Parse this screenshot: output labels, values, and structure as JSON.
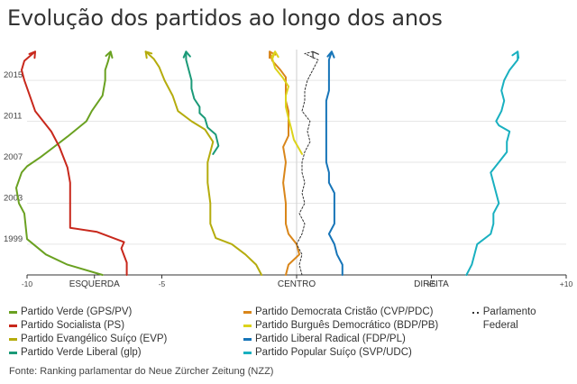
{
  "title": "Evolução dos partidos ao longo dos anos",
  "source": "Fonte: Ranking parlamentar do Neue Zürcher Zeitung (NZZ)",
  "chart_data": {
    "type": "line",
    "orientation": "vertical-time",
    "title": "Evolução dos partidos ao longo dos anos",
    "x_axis": {
      "min": -10,
      "max": 10,
      "ticks": [
        {
          "value": -10,
          "label": "-10"
        },
        {
          "value": -5,
          "label": "-5"
        },
        {
          "value": 5,
          "label": "+5"
        },
        {
          "value": 10,
          "label": "+10"
        }
      ],
      "zone_labels": [
        {
          "value": -7.5,
          "label": "ESQUERDA"
        },
        {
          "value": 0,
          "label": "CENTRO"
        },
        {
          "value": 5,
          "label": "DIREITA"
        }
      ]
    },
    "y_axis": {
      "min": 1996,
      "max": 2018,
      "ticks": [
        1999,
        2003,
        2007,
        2011,
        2015
      ]
    },
    "series": [
      {
        "name": "Partido Verde (GPS/PV)",
        "color": "#6aa121",
        "points": [
          [
            -7.2,
            1996
          ],
          [
            -8.5,
            1997
          ],
          [
            -9.3,
            1998
          ],
          [
            -10,
            1999.5
          ],
          [
            -10.1,
            2002
          ],
          [
            -10.3,
            2003
          ],
          [
            -10.4,
            2004.5
          ],
          [
            -10.2,
            2006
          ],
          [
            -10.0,
            2006.6
          ],
          [
            -9.5,
            2007.5
          ],
          [
            -9.0,
            2008.5
          ],
          [
            -8.5,
            2009.5
          ],
          [
            -7.8,
            2011
          ],
          [
            -7.6,
            2012
          ],
          [
            -7.2,
            2013.5
          ],
          [
            -7.1,
            2015
          ],
          [
            -7.1,
            2016
          ],
          [
            -7.0,
            2016.8
          ],
          [
            -6.9,
            2017.8
          ]
        ],
        "dashed": false
      },
      {
        "name": "Partido Socialista (PS)",
        "color": "#c8281c",
        "points": [
          [
            -6.3,
            1996
          ],
          [
            -6.3,
            1997.2
          ],
          [
            -6.5,
            1998.6
          ],
          [
            -6.4,
            1999.2
          ],
          [
            -7.4,
            2000.2
          ],
          [
            -8.4,
            2000.6
          ],
          [
            -8.4,
            2003
          ],
          [
            -8.4,
            2005
          ],
          [
            -8.5,
            2006.5
          ],
          [
            -8.8,
            2008.5
          ],
          [
            -9.1,
            2010
          ],
          [
            -9.4,
            2011
          ],
          [
            -9.7,
            2012
          ],
          [
            -9.9,
            2013.5
          ],
          [
            -10.1,
            2015
          ],
          [
            -10.2,
            2016
          ],
          [
            -10.1,
            2016.9
          ],
          [
            -9.7,
            2017.8
          ]
        ],
        "dashed": false
      },
      {
        "name": "Partido Evangélico Suíço (EVP)",
        "color": "#b5ac0d",
        "points": [
          [
            -1.3,
            1996
          ],
          [
            -1.5,
            1997
          ],
          [
            -1.9,
            1998
          ],
          [
            -2.4,
            1999
          ],
          [
            -3.0,
            1999.6
          ],
          [
            -3.2,
            2001
          ],
          [
            -3.2,
            2003
          ],
          [
            -3.3,
            2005
          ],
          [
            -3.3,
            2007
          ],
          [
            -3.2,
            2008
          ],
          [
            -3.1,
            2009
          ],
          [
            -3.4,
            2010.2
          ],
          [
            -3.9,
            2011
          ],
          [
            -4.4,
            2012
          ],
          [
            -4.6,
            2013.5
          ],
          [
            -4.9,
            2015
          ],
          [
            -5.1,
            2016.3
          ],
          [
            -5.3,
            2017.1
          ],
          [
            -5.6,
            2017.8
          ]
        ],
        "dashed": false
      },
      {
        "name": "Partido Verde Liberal (glp)",
        "color": "#1b9a78",
        "points": [
          [
            -3.1,
            2007.8
          ],
          [
            -2.9,
            2008.6
          ],
          [
            -3.0,
            2009.7
          ],
          [
            -3.3,
            2010.4
          ],
          [
            -3.4,
            2011.3
          ],
          [
            -3.6,
            2011.8
          ],
          [
            -3.6,
            2012.4
          ],
          [
            -3.8,
            2013.2
          ],
          [
            -3.9,
            2014.2
          ],
          [
            -3.9,
            2015
          ],
          [
            -4.0,
            2016
          ],
          [
            -4.1,
            2017
          ],
          [
            -4.1,
            2017.8
          ]
        ],
        "dashed": false
      },
      {
        "name": "Partido Democrata Cristão (CVP/PDC)",
        "color": "#d9861a",
        "points": [
          [
            -0.4,
            1996
          ],
          [
            -0.3,
            1997
          ],
          [
            0.1,
            1998
          ],
          [
            0.0,
            1999
          ],
          [
            -0.3,
            2000
          ],
          [
            -0.4,
            2001
          ],
          [
            -0.4,
            2003
          ],
          [
            -0.5,
            2005
          ],
          [
            -0.4,
            2007
          ],
          [
            -0.5,
            2008.5
          ],
          [
            -0.3,
            2009.6
          ],
          [
            -0.3,
            2011
          ],
          [
            -0.3,
            2012
          ],
          [
            -0.4,
            2013
          ],
          [
            -0.4,
            2014.5
          ],
          [
            -0.4,
            2015.3
          ],
          [
            -0.6,
            2016
          ],
          [
            -0.9,
            2016.9
          ],
          [
            -1.0,
            2017.8
          ]
        ],
        "dashed": false
      },
      {
        "name": "Partido Burguês Democrático (BDP/PB)",
        "color": "#dcd31b",
        "points": [
          [
            0.2,
            2007.8
          ],
          [
            -0.1,
            2009.2
          ],
          [
            -0.2,
            2010.3
          ],
          [
            -0.3,
            2011.3
          ],
          [
            -0.4,
            2012.4
          ],
          [
            -0.4,
            2013.5
          ],
          [
            -0.3,
            2014.4
          ],
          [
            -0.5,
            2015.2
          ],
          [
            -0.8,
            2016.2
          ],
          [
            -0.9,
            2017.1
          ],
          [
            -0.8,
            2017.8
          ]
        ],
        "dashed": false
      },
      {
        "name": "Parlamento Federal",
        "color": "#333333",
        "points": [
          [
            0.2,
            1996
          ],
          [
            0.1,
            1997
          ],
          [
            0.2,
            1998
          ],
          [
            0.0,
            1999
          ],
          [
            0.2,
            2000
          ],
          [
            0.3,
            2001
          ],
          [
            0.1,
            2002
          ],
          [
            0.3,
            2003
          ],
          [
            0.2,
            2004
          ],
          [
            0.3,
            2005
          ],
          [
            0.2,
            2006
          ],
          [
            0.2,
            2007
          ],
          [
            0.3,
            2008
          ],
          [
            0.5,
            2009
          ],
          [
            0.4,
            2010
          ],
          [
            0.5,
            2011
          ],
          [
            0.2,
            2012
          ],
          [
            0.3,
            2013
          ],
          [
            0.3,
            2014
          ],
          [
            0.4,
            2015
          ],
          [
            0.6,
            2016
          ],
          [
            0.8,
            2017
          ],
          [
            0.3,
            2017.6
          ],
          [
            0.6,
            2017.8
          ]
        ],
        "dashed": true
      },
      {
        "name": "Partido Liberal Radical (FDP/PL)",
        "color": "#1775b8",
        "points": [
          [
            1.7,
            1996
          ],
          [
            1.7,
            1997
          ],
          [
            1.5,
            1998
          ],
          [
            1.4,
            1999
          ],
          [
            1.2,
            2000
          ],
          [
            1.4,
            2001
          ],
          [
            1.4,
            2002
          ],
          [
            1.4,
            2003
          ],
          [
            1.4,
            2004
          ],
          [
            1.2,
            2005
          ],
          [
            1.2,
            2006
          ],
          [
            1.1,
            2007
          ],
          [
            1.1,
            2008
          ],
          [
            1.1,
            2009.6
          ],
          [
            1.1,
            2010.4
          ],
          [
            1.1,
            2011
          ],
          [
            1.1,
            2012
          ],
          [
            1.1,
            2013
          ],
          [
            1.2,
            2014
          ],
          [
            1.2,
            2015
          ],
          [
            1.2,
            2016
          ],
          [
            1.2,
            2017
          ],
          [
            1.3,
            2017.8
          ]
        ],
        "dashed": false
      },
      {
        "name": "Partido Popular Suíço (SVP/UDC)",
        "color": "#19b0c0",
        "points": [
          [
            6.3,
            1996
          ],
          [
            6.5,
            1997
          ],
          [
            6.6,
            1998
          ],
          [
            6.7,
            1999
          ],
          [
            7.2,
            2000
          ],
          [
            7.3,
            2001
          ],
          [
            7.3,
            2002
          ],
          [
            7.5,
            2003
          ],
          [
            7.4,
            2004
          ],
          [
            7.3,
            2005
          ],
          [
            7.2,
            2006
          ],
          [
            7.5,
            2007
          ],
          [
            7.8,
            2008
          ],
          [
            7.8,
            2009
          ],
          [
            7.9,
            2010
          ],
          [
            7.5,
            2010.6
          ],
          [
            7.4,
            2011
          ],
          [
            7.6,
            2012
          ],
          [
            7.7,
            2013
          ],
          [
            7.6,
            2014
          ],
          [
            7.7,
            2015
          ],
          [
            7.9,
            2016
          ],
          [
            8.2,
            2017
          ],
          [
            8.2,
            2017.8
          ]
        ],
        "dashed": false
      }
    ]
  },
  "legend": [
    {
      "label": "Partido Verde (GPS/PV)",
      "color": "#6aa121",
      "style": "solid"
    },
    {
      "label": "Partido Socialista (PS)",
      "color": "#c8281c",
      "style": "solid"
    },
    {
      "label": "Partido Evangélico Suíço (EVP)",
      "color": "#b5ac0d",
      "style": "solid"
    },
    {
      "label": "Partido Verde Liberal (glp)",
      "color": "#1b9a78",
      "style": "solid"
    },
    {
      "label": "Partido Democrata Cristão (CVP/PDC)",
      "color": "#d9861a",
      "style": "solid"
    },
    {
      "label": "Partido Burguês Democrático (BDP/PB)",
      "color": "#dcd31b",
      "style": "solid"
    },
    {
      "label": "Partido Liberal Radical (FDP/PL)",
      "color": "#1775b8",
      "style": "solid"
    },
    {
      "label": "Partido Popular Suíço (SVP/UDC)",
      "color": "#19b0c0",
      "style": "solid"
    },
    {
      "label": "Parlamento Federal",
      "color": "#333333",
      "style": "dotted"
    }
  ]
}
